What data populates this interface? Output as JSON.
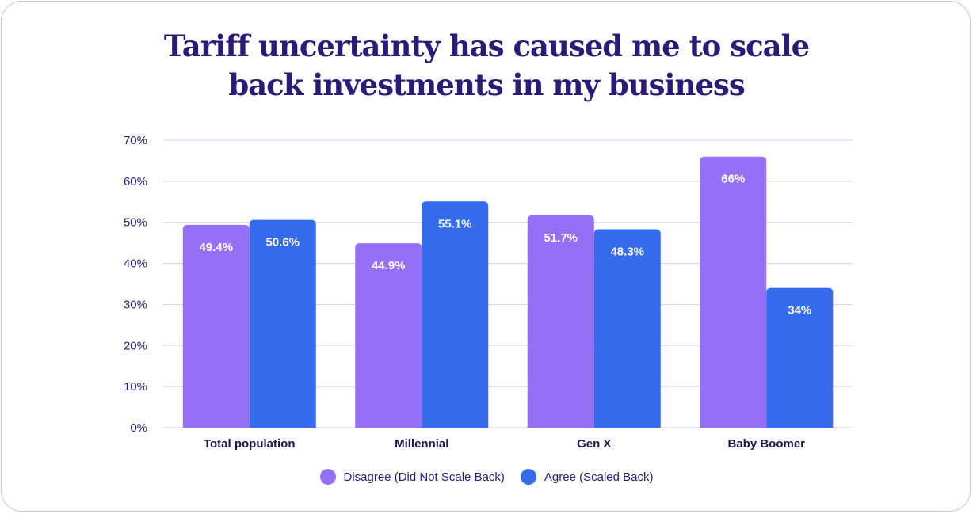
{
  "title_lines": [
    "Tariff uncertainty has caused me to scale",
    "back investments in my business"
  ],
  "chart_data": {
    "type": "bar",
    "title": "Tariff uncertainty has caused me to scale back investments in my business",
    "categories": [
      "Total population",
      "Millennial",
      "Gen X",
      "Baby Boomer"
    ],
    "series": [
      {
        "name": "Disagree (Did Not Scale Back)",
        "color": "#9470f7",
        "values": [
          49.4,
          44.9,
          51.7,
          66
        ],
        "labels": [
          "49.4%",
          "44.9%",
          "51.7%",
          "66%"
        ]
      },
      {
        "name": "Agree (Scaled Back)",
        "color": "#356ced",
        "values": [
          50.6,
          55.1,
          48.3,
          34
        ],
        "labels": [
          "50.6%",
          "55.1%",
          "48.3%",
          "34%"
        ]
      }
    ],
    "yticks": [
      "0%",
      "10%",
      "20%",
      "30%",
      "40%",
      "50%",
      "60%",
      "70%"
    ],
    "ylim": [
      0,
      70
    ],
    "grid": true,
    "legend_position": "bottom-center",
    "gridline_color": "#d6d0f5"
  }
}
